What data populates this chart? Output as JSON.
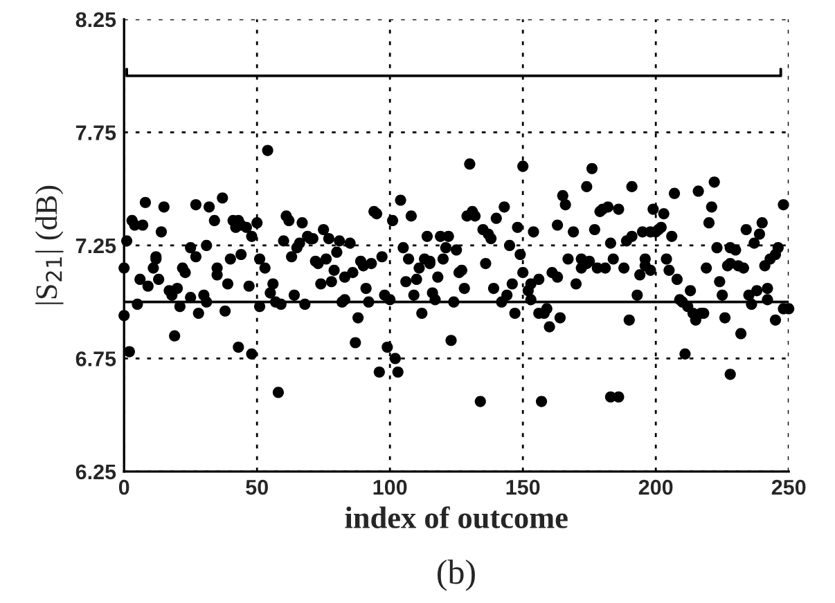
{
  "chart_data": {
    "type": "scatter",
    "xlabel": "index of outcome",
    "ylabel": "|S$_{21}$| (dB)",
    "annotations": [
      "(b)"
    ],
    "xlim": [
      0,
      250
    ],
    "xticks": [
      0,
      50,
      100,
      150,
      200,
      250
    ],
    "ylim": [
      6.25,
      8.25
    ],
    "yticks": [
      6.25,
      6.75,
      7.25,
      7.75,
      8.25
    ],
    "grid": true,
    "ref_lines": [
      {
        "axis": "y",
        "value": 7.0,
        "color": "#000000"
      }
    ],
    "series": [
      {
        "marker": "circle",
        "color": "#000000",
        "x": [
          0,
          0,
          1,
          2,
          3,
          4,
          5,
          7,
          6,
          8,
          9,
          11,
          12,
          12,
          13,
          14,
          15,
          17,
          18,
          19,
          20,
          21,
          22,
          23,
          25,
          25,
          27,
          27,
          28,
          30,
          31,
          31,
          32,
          34,
          35,
          35,
          37,
          38,
          39,
          40,
          41,
          42,
          43,
          44,
          43,
          44,
          46,
          47,
          48,
          48,
          50,
          51,
          51,
          53,
          54,
          55,
          56,
          57,
          58,
          59,
          60,
          61,
          62,
          63,
          64,
          65,
          66,
          67,
          68,
          69,
          70,
          71,
          72,
          73,
          74,
          75,
          76,
          77,
          78,
          79,
          80,
          81,
          82,
          83,
          83,
          85,
          86,
          87,
          88,
          89,
          90,
          91,
          92,
          93,
          94,
          95,
          96,
          97,
          98,
          99,
          100,
          101,
          102,
          103,
          104,
          105,
          106,
          107,
          108,
          109,
          110,
          111,
          112,
          113,
          114,
          115,
          115,
          116,
          117,
          118,
          119,
          120,
          121,
          122,
          123,
          124,
          125,
          126,
          127,
          128,
          129,
          130,
          131,
          132,
          134,
          135,
          136,
          137,
          138,
          139,
          140,
          142,
          143,
          144,
          145,
          146,
          147,
          148,
          149,
          150,
          150,
          152,
          153,
          153,
          154,
          156,
          156,
          157,
          158,
          159,
          160,
          161,
          163,
          163,
          164,
          165,
          166,
          167,
          169,
          170,
          172,
          172,
          174,
          174,
          175,
          176,
          177,
          178,
          179,
          180,
          181,
          182,
          183,
          183,
          184,
          186,
          186,
          188,
          189,
          190,
          191,
          191,
          193,
          194,
          195,
          196,
          196,
          198,
          198,
          199,
          200,
          201,
          202,
          203,
          204,
          205,
          206,
          207,
          208,
          209,
          210,
          211,
          212,
          213,
          214,
          215,
          216,
          217,
          218,
          219,
          220,
          221,
          222,
          223,
          224,
          225,
          226,
          227,
          228,
          228,
          228,
          230,
          231,
          232,
          233,
          234,
          235,
          236,
          237,
          238,
          239,
          240,
          241,
          242,
          242,
          243,
          245,
          245,
          246,
          248,
          248,
          250
        ],
        "values": [
          7.15,
          6.94,
          7.27,
          6.78,
          7.36,
          7.34,
          6.99,
          7.34,
          7.1,
          7.44,
          7.07,
          7.15,
          7.19,
          7.2,
          7.1,
          7.31,
          7.42,
          7.05,
          7.03,
          6.85,
          7.06,
          6.98,
          7.15,
          7.13,
          7.02,
          7.24,
          7.43,
          7.2,
          6.95,
          7.03,
          7.25,
          7.0,
          7.42,
          7.36,
          7.12,
          7.15,
          7.46,
          6.96,
          7.08,
          7.19,
          7.36,
          7.33,
          7.36,
          7.34,
          6.8,
          7.21,
          7.33,
          7.07,
          6.77,
          7.29,
          7.35,
          7.19,
          6.98,
          7.15,
          7.67,
          7.04,
          7.08,
          7.0,
          6.6,
          6.99,
          7.27,
          7.38,
          7.36,
          7.2,
          7.03,
          7.24,
          7.26,
          7.35,
          6.99,
          7.29,
          7.28,
          7.28,
          7.18,
          7.17,
          7.08,
          7.32,
          7.19,
          7.28,
          7.09,
          7.14,
          7.22,
          7.27,
          7.0,
          7.01,
          7.11,
          7.26,
          7.13,
          6.82,
          6.93,
          7.18,
          7.16,
          7.06,
          7.0,
          7.17,
          7.4,
          7.39,
          6.69,
          7.2,
          7.03,
          6.8,
          7.01,
          7.36,
          6.75,
          6.69,
          7.45,
          7.24,
          7.09,
          7.19,
          7.38,
          7.03,
          7.1,
          7.15,
          6.95,
          7.19,
          7.29,
          7.18,
          7.17,
          7.04,
          7.01,
          7.11,
          7.29,
          7.19,
          7.24,
          7.29,
          6.83,
          7.0,
          7.23,
          7.13,
          7.14,
          7.06,
          7.38,
          7.61,
          7.4,
          7.38,
          6.56,
          7.32,
          7.17,
          7.3,
          7.28,
          7.06,
          7.37,
          7.0,
          7.42,
          7.03,
          7.25,
          7.08,
          6.95,
          7.33,
          7.21,
          7.13,
          7.6,
          7.05,
          7.08,
          7.01,
          7.31,
          7.1,
          6.95,
          6.56,
          6.95,
          6.97,
          6.89,
          7.13,
          7.11,
          7.34,
          6.93,
          7.47,
          7.43,
          7.19,
          7.31,
          7.08,
          7.15,
          7.19,
          7.51,
          7.17,
          7.18,
          7.59,
          7.32,
          7.15,
          7.4,
          7.41,
          7.15,
          7.42,
          7.26,
          6.58,
          7.19,
          7.41,
          6.58,
          7.15,
          7.27,
          6.92,
          7.51,
          7.29,
          7.03,
          7.12,
          7.31,
          7.19,
          7.16,
          7.14,
          7.31,
          7.41,
          7.31,
          7.32,
          7.33,
          7.39,
          7.19,
          7.14,
          7.29,
          7.48,
          7.1,
          7.01,
          7.0,
          6.77,
          6.98,
          7.05,
          6.95,
          6.92,
          7.49,
          6.95,
          6.95,
          7.15,
          7.35,
          7.42,
          7.53,
          7.24,
          7.09,
          7.03,
          6.93,
          7.16,
          6.68,
          7.24,
          7.17,
          7.23,
          7.16,
          6.86,
          7.15,
          7.32,
          7.03,
          6.99,
          7.26,
          7.05,
          7.3,
          7.35,
          7.16,
          7.06,
          7.01,
          7.19,
          6.92,
          7.21,
          7.24,
          7.43,
          6.97,
          6.97
        ]
      },
      {
        "type": "line",
        "color": "#000000",
        "x": [
          1,
          1,
          247,
          247
        ],
        "values": [
          8.03,
          8.0,
          8.0,
          8.03
        ]
      }
    ]
  }
}
